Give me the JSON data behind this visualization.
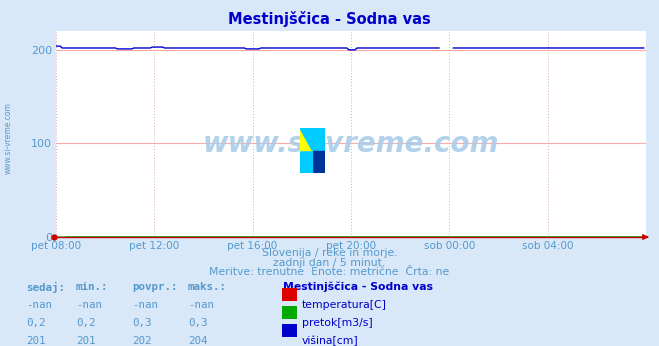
{
  "title": "Mestinjščica - Sodna vas",
  "bg_color": "#d8e8f8",
  "plot_bg_color": "#ffffff",
  "grid_color_h": "#ffaaaa",
  "grid_color_v": "#ddaaaa",
  "axis_color": "#cc0000",
  "text_color": "#5599cc",
  "title_color": "#0000cc",
  "xlim_start": 0,
  "xlim_end": 288,
  "ylim": [
    0,
    220
  ],
  "yticks": [
    0,
    100,
    200
  ],
  "xtick_labels": [
    "pet 08:00",
    "pet 12:00",
    "pet 16:00",
    "pet 20:00",
    "sob 00:00",
    "sob 04:00"
  ],
  "xtick_positions": [
    0,
    48,
    96,
    144,
    192,
    240
  ],
  "watermark": "www.si-vreme.com",
  "subtitle1": "Slovenija / reke in morje.",
  "subtitle2": "zadnji dan / 5 minut.",
  "subtitle3": "Meritve: trenutne  Enote: metrične  Črta: ne",
  "legend_title": "Mestinjščica - Sodna vas",
  "legend_items": [
    {
      "label": "temperatura[C]",
      "color": "#dd0000"
    },
    {
      "label": "pretok[m3/s]",
      "color": "#00aa00"
    },
    {
      "label": "višina[cm]",
      "color": "#0000cc"
    }
  ],
  "table_headers": [
    "sedaj:",
    "min.:",
    "povpr.:",
    "maks.:"
  ],
  "table_rows": [
    [
      "-nan",
      "-nan",
      "-nan",
      "-nan"
    ],
    [
      "0,2",
      "0,2",
      "0,3",
      "0,3"
    ],
    [
      "201",
      "201",
      "202",
      "204"
    ]
  ],
  "line_color_blue": "#0000cc",
  "line_color_red": "#cc0000",
  "line_color_green": "#00aa00",
  "logo_colors": [
    "#ffff00",
    "#00ccff",
    "#003399"
  ]
}
